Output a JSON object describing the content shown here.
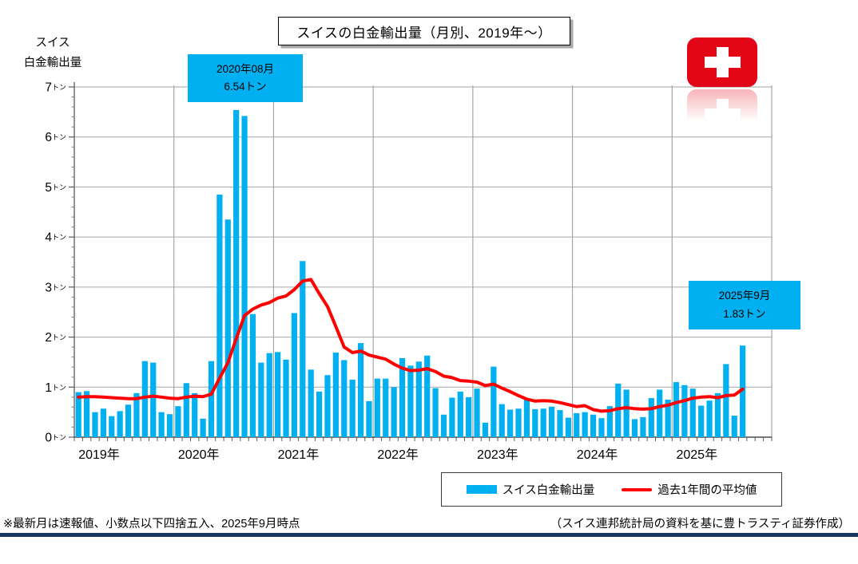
{
  "y_axis_title": {
    "line1": "スイス",
    "line2": "白金輸出量"
  },
  "title_box": {
    "text": "スイスの白金輸出量（月別、2019年～）"
  },
  "flag": {
    "color": "#e30617"
  },
  "annotations": [
    {
      "line1": "2020年08月",
      "line2": "6.54トン",
      "color": "#00B0F0"
    },
    {
      "line1": "2025年9月",
      "line2": "1.83トン",
      "color": "#00B0F0"
    }
  ],
  "legend": {
    "bar_label": "スイス白金輸出量",
    "line_label": "過去1年間の平均値"
  },
  "footer": {
    "left": "※最新月は速報値、小数点以下四捨五入、2025年9月時点",
    "right": "（スイス連邦統計局の資料を基に豊トラスティ証券作成）",
    "rule_color": "#17375D"
  },
  "chart_data": {
    "type": "bar",
    "title": "スイスの白金輸出量（月別、2019年～）",
    "ylabel": "スイス白金輸出量",
    "unit": "トン",
    "ylim": [
      0,
      7
    ],
    "y_major_tick": 1,
    "y_minor_tick": 0.2,
    "grid": "on",
    "year_labels": [
      "2019年",
      "2020年",
      "2021年",
      "2022年",
      "2023年",
      "2024年",
      "2025年"
    ],
    "series": [
      {
        "name": "スイス白金輸出量",
        "kind": "bar",
        "color": "#00B0F0",
        "values_by_year": {
          "2019": [
            0.9,
            0.92,
            0.5,
            0.57,
            0.42,
            0.52,
            0.65,
            0.88,
            1.52,
            1.49,
            0.5,
            0.46
          ],
          "2020": [
            0.62,
            1.08,
            0.88,
            0.37,
            1.52,
            4.85,
            4.35,
            6.54,
            6.42,
            2.46,
            1.49,
            1.68
          ],
          "2021": [
            1.7,
            1.55,
            2.48,
            3.52,
            1.35,
            0.91,
            1.24,
            1.69,
            1.54,
            1.15,
            1.88,
            0.72
          ],
          "2022": [
            1.17,
            1.17,
            1.0,
            1.58,
            1.43,
            1.51,
            1.63,
            0.98,
            0.45,
            0.79,
            0.91,
            0.8
          ],
          "2023": [
            0.97,
            0.29,
            1.41,
            0.66,
            0.55,
            0.57,
            0.75,
            0.56,
            0.57,
            0.61,
            0.54,
            0.39
          ],
          "2024": [
            0.48,
            0.5,
            0.45,
            0.38,
            0.62,
            1.07,
            0.95,
            0.36,
            0.4,
            0.78,
            0.95,
            0.75
          ],
          "2025": [
            1.1,
            1.04,
            0.97,
            0.63,
            0.73,
            0.88,
            1.46,
            0.43,
            1.83
          ]
        }
      },
      {
        "name": "過去1年間の平均値",
        "kind": "line",
        "color": "#FF0000",
        "values_by_year": {
          "2019": [
            0.8,
            0.81,
            0.81,
            0.8,
            0.79,
            0.78,
            0.77,
            0.77,
            0.8,
            0.82,
            0.8,
            0.78
          ],
          "2020": [
            0.77,
            0.8,
            0.82,
            0.81,
            0.86,
            1.18,
            1.49,
            1.97,
            2.43,
            2.56,
            2.64,
            2.69
          ],
          "2021": [
            2.78,
            2.82,
            2.95,
            3.12,
            3.15,
            2.87,
            2.61,
            2.21,
            1.8,
            1.69,
            1.72,
            1.64
          ],
          "2022": [
            1.6,
            1.56,
            1.46,
            1.38,
            1.33,
            1.34,
            1.37,
            1.31,
            1.22,
            1.19,
            1.13,
            1.12
          ],
          "2023": [
            1.1,
            1.03,
            1.06,
            0.98,
            0.91,
            0.83,
            0.76,
            0.72,
            0.73,
            0.72,
            0.69,
            0.65
          ],
          "2024": [
            0.61,
            0.63,
            0.55,
            0.52,
            0.53,
            0.57,
            0.59,
            0.57,
            0.56,
            0.57,
            0.61,
            0.64
          ],
          "2025": [
            0.69,
            0.73,
            0.78,
            0.8,
            0.81,
            0.79,
            0.83,
            0.84,
            0.96
          ]
        }
      }
    ],
    "peak_annotation": {
      "month": "2020年08月",
      "value": "6.54トン"
    },
    "latest_annotation": {
      "month": "2025年9月",
      "value": "1.83トン"
    }
  }
}
